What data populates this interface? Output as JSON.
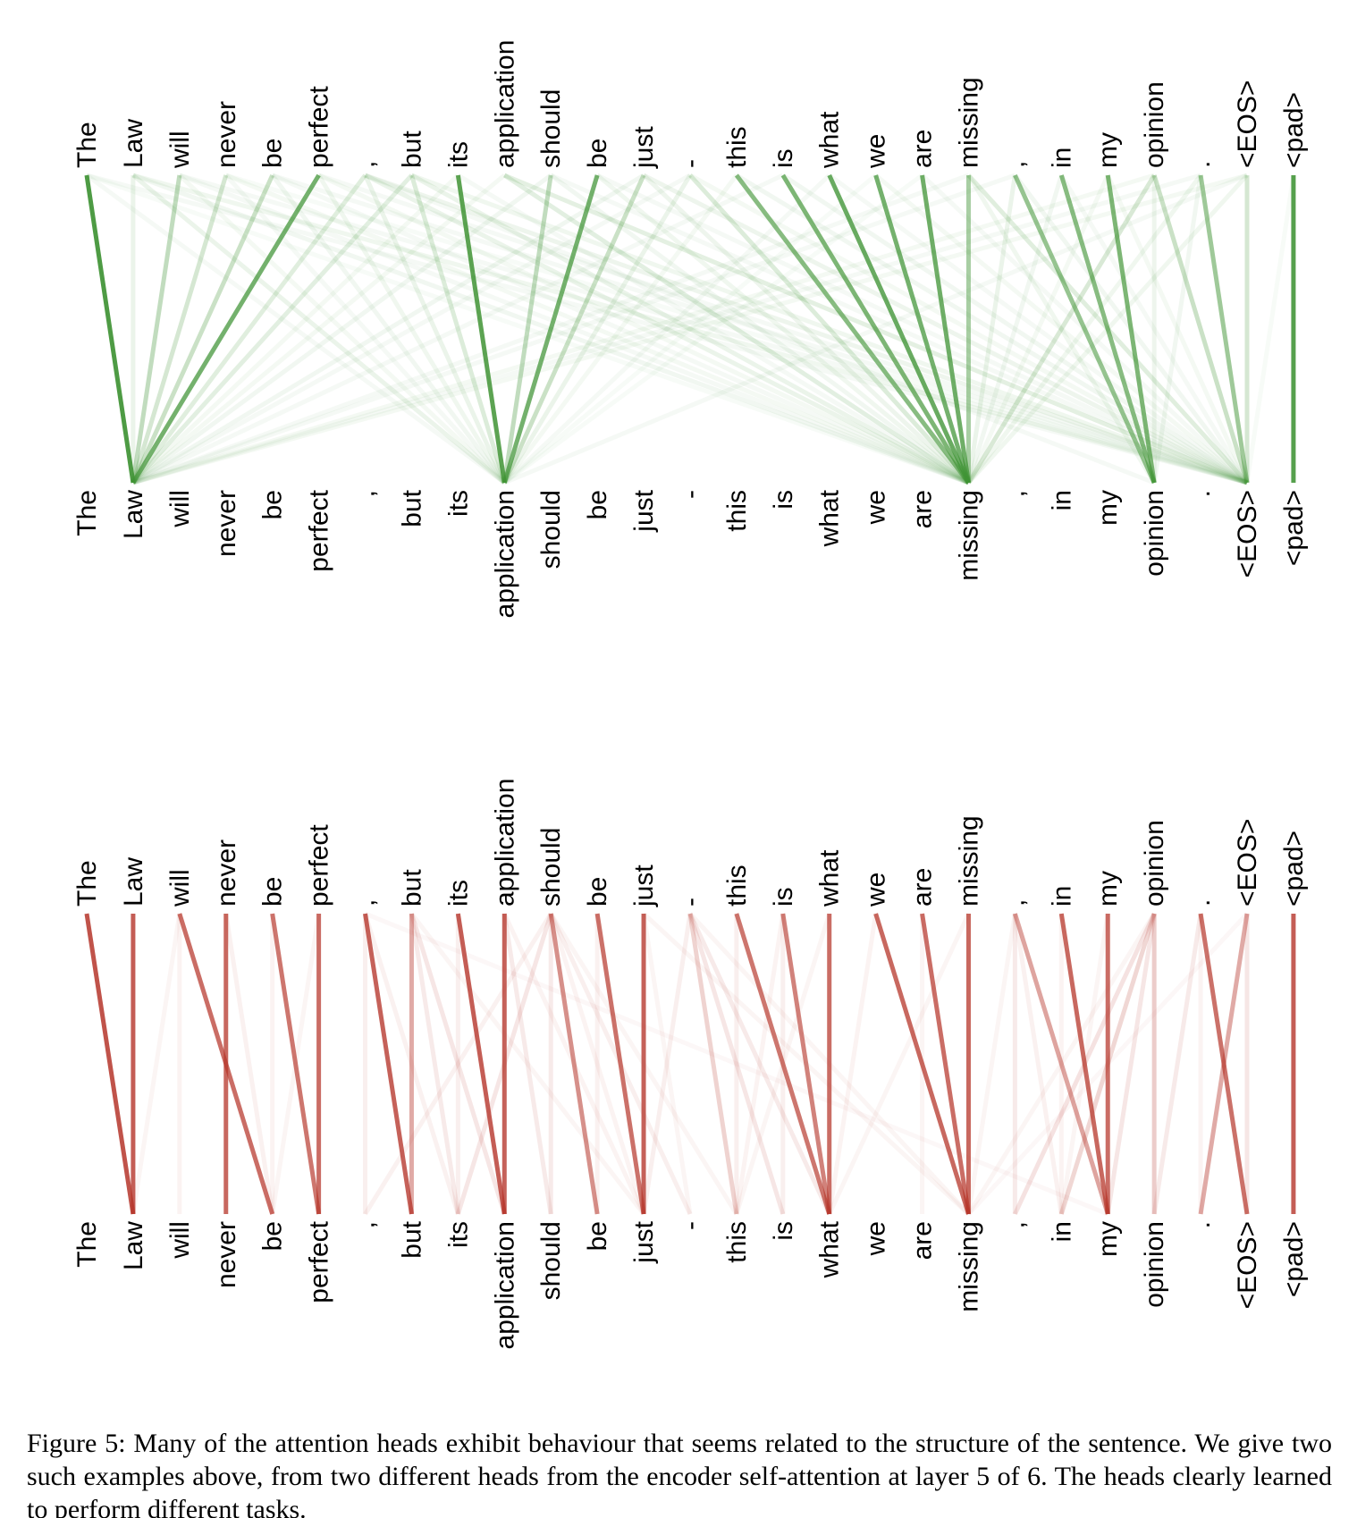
{
  "figure": {
    "tokens": [
      "The",
      "Law",
      "will",
      "never",
      "be",
      "perfect",
      ",",
      "but",
      "its",
      "application",
      "should",
      "be",
      "just",
      "-",
      "this",
      "is",
      "what",
      "we",
      "are",
      "missing",
      ",",
      "in",
      "my",
      "opinion",
      ".",
      "<EOS>",
      "<pad>"
    ],
    "heads": [
      {
        "id": "encoder-self-attention-head-green",
        "color": "#3F9334",
        "edges": [
          [
            0,
            1,
            0.92
          ],
          [
            5,
            1,
            0.72
          ],
          [
            8,
            9,
            0.85
          ],
          [
            11,
            9,
            0.72
          ],
          [
            14,
            19,
            0.62
          ],
          [
            15,
            19,
            0.68
          ],
          [
            16,
            19,
            0.78
          ],
          [
            17,
            19,
            0.72
          ],
          [
            18,
            19,
            0.75
          ],
          [
            19,
            19,
            0.45
          ],
          [
            20,
            23,
            0.55
          ],
          [
            21,
            23,
            0.62
          ],
          [
            22,
            23,
            0.68
          ],
          [
            24,
            25,
            0.5
          ],
          [
            26,
            26,
            0.88
          ],
          [
            2,
            1,
            0.32
          ],
          [
            3,
            1,
            0.22
          ],
          [
            4,
            1,
            0.28
          ],
          [
            10,
            9,
            0.32
          ],
          [
            12,
            9,
            0.28
          ],
          [
            7,
            9,
            0.18
          ],
          [
            13,
            19,
            0.18
          ],
          [
            23,
            25,
            0.28
          ],
          [
            23,
            19,
            0.2
          ],
          [
            25,
            25,
            0.22
          ],
          [
            9,
            19,
            0.15
          ],
          [
            9,
            25,
            0.14
          ],
          [
            6,
            1,
            0.16
          ],
          [
            19,
            25,
            0.16
          ],
          [
            1,
            9,
            0.1
          ],
          [
            7,
            1,
            0.15
          ],
          [
            0,
            9,
            0.05
          ],
          [
            0,
            19,
            0.04
          ],
          [
            0,
            25,
            0.05
          ],
          [
            1,
            1,
            0.1
          ],
          [
            1,
            19,
            0.07
          ],
          [
            1,
            25,
            0.08
          ],
          [
            2,
            9,
            0.06
          ],
          [
            2,
            19,
            0.05
          ],
          [
            2,
            25,
            0.05
          ],
          [
            3,
            9,
            0.05
          ],
          [
            3,
            19,
            0.06
          ],
          [
            3,
            25,
            0.04
          ],
          [
            4,
            9,
            0.07
          ],
          [
            4,
            19,
            0.05
          ],
          [
            4,
            25,
            0.05
          ],
          [
            5,
            9,
            0.08
          ],
          [
            5,
            19,
            0.06
          ],
          [
            5,
            25,
            0.05
          ],
          [
            6,
            9,
            0.1
          ],
          [
            6,
            19,
            0.1
          ],
          [
            6,
            25,
            0.09
          ],
          [
            6,
            23,
            0.05
          ],
          [
            7,
            19,
            0.1
          ],
          [
            7,
            25,
            0.08
          ],
          [
            8,
            1,
            0.06
          ],
          [
            8,
            19,
            0.05
          ],
          [
            9,
            1,
            0.06
          ],
          [
            10,
            1,
            0.07
          ],
          [
            10,
            19,
            0.07
          ],
          [
            10,
            25,
            0.05
          ],
          [
            11,
            19,
            0.08
          ],
          [
            11,
            25,
            0.05
          ],
          [
            12,
            1,
            0.07
          ],
          [
            12,
            19,
            0.09
          ],
          [
            12,
            25,
            0.09
          ],
          [
            13,
            9,
            0.1
          ],
          [
            13,
            25,
            0.06
          ],
          [
            13,
            1,
            0.05
          ],
          [
            14,
            9,
            0.06
          ],
          [
            14,
            25,
            0.07
          ],
          [
            15,
            1,
            0.05
          ],
          [
            15,
            25,
            0.07
          ],
          [
            16,
            9,
            0.05
          ],
          [
            16,
            25,
            0.05
          ],
          [
            17,
            25,
            0.06
          ],
          [
            17,
            9,
            0.04
          ],
          [
            18,
            25,
            0.05
          ],
          [
            18,
            9,
            0.04
          ],
          [
            19,
            23,
            0.08
          ],
          [
            19,
            1,
            0.05
          ],
          [
            20,
            19,
            0.1
          ],
          [
            20,
            25,
            0.07
          ],
          [
            20,
            1,
            0.05
          ],
          [
            21,
            19,
            0.07
          ],
          [
            21,
            25,
            0.05
          ],
          [
            22,
            19,
            0.06
          ],
          [
            22,
            25,
            0.06
          ],
          [
            23,
            23,
            0.09
          ],
          [
            23,
            1,
            0.06
          ],
          [
            24,
            19,
            0.08
          ],
          [
            24,
            23,
            0.07
          ],
          [
            24,
            1,
            0.05
          ],
          [
            25,
            19,
            0.08
          ],
          [
            25,
            1,
            0.06
          ],
          [
            25,
            9,
            0.05
          ],
          [
            26,
            25,
            0.04
          ]
        ]
      },
      {
        "id": "encoder-self-attention-head-red",
        "color": "#B5352A",
        "edges": [
          [
            0,
            1,
            0.85
          ],
          [
            1,
            1,
            0.8
          ],
          [
            2,
            4,
            0.72
          ],
          [
            3,
            3,
            0.75
          ],
          [
            4,
            5,
            0.68
          ],
          [
            5,
            5,
            0.72
          ],
          [
            6,
            7,
            0.78
          ],
          [
            8,
            9,
            0.8
          ],
          [
            9,
            9,
            0.78
          ],
          [
            10,
            11,
            0.55
          ],
          [
            11,
            12,
            0.7
          ],
          [
            12,
            12,
            0.78
          ],
          [
            14,
            16,
            0.68
          ],
          [
            15,
            16,
            0.62
          ],
          [
            16,
            16,
            0.72
          ],
          [
            17,
            19,
            0.75
          ],
          [
            18,
            19,
            0.72
          ],
          [
            19,
            19,
            0.75
          ],
          [
            21,
            22,
            0.75
          ],
          [
            22,
            22,
            0.72
          ],
          [
            24,
            25,
            0.7
          ],
          [
            26,
            26,
            0.8
          ],
          [
            7,
            7,
            0.42
          ],
          [
            20,
            22,
            0.45
          ],
          [
            25,
            24,
            0.42
          ],
          [
            23,
            23,
            0.25
          ],
          [
            23,
            21,
            0.2
          ],
          [
            23,
            20,
            0.14
          ],
          [
            13,
            14,
            0.22
          ],
          [
            2,
            2,
            0.06
          ],
          [
            3,
            4,
            0.07
          ],
          [
            2,
            1,
            0.05
          ],
          [
            4,
            4,
            0.06
          ],
          [
            5,
            4,
            0.05
          ],
          [
            6,
            6,
            0.08
          ],
          [
            6,
            8,
            0.07
          ],
          [
            7,
            8,
            0.1
          ],
          [
            7,
            9,
            0.12
          ],
          [
            7,
            12,
            0.05
          ],
          [
            8,
            8,
            0.08
          ],
          [
            9,
            10,
            0.1
          ],
          [
            9,
            12,
            0.06
          ],
          [
            10,
            8,
            0.12
          ],
          [
            10,
            6,
            0.07
          ],
          [
            10,
            10,
            0.1
          ],
          [
            10,
            13,
            0.08
          ],
          [
            10,
            12,
            0.06
          ],
          [
            10,
            14,
            0.05
          ],
          [
            11,
            11,
            0.07
          ],
          [
            12,
            13,
            0.05
          ],
          [
            13,
            15,
            0.12
          ],
          [
            13,
            16,
            0.1
          ],
          [
            13,
            12,
            0.08
          ],
          [
            13,
            19,
            0.05
          ],
          [
            14,
            14,
            0.08
          ],
          [
            15,
            15,
            0.08
          ],
          [
            15,
            14,
            0.06
          ],
          [
            16,
            14,
            0.05
          ],
          [
            12,
            19,
            0.05
          ],
          [
            17,
            16,
            0.06
          ],
          [
            18,
            18,
            0.05
          ],
          [
            19,
            16,
            0.05
          ],
          [
            20,
            20,
            0.1
          ],
          [
            20,
            21,
            0.07
          ],
          [
            20,
            19,
            0.05
          ],
          [
            21,
            21,
            0.06
          ],
          [
            22,
            21,
            0.05
          ],
          [
            23,
            22,
            0.12
          ],
          [
            23,
            19,
            0.05
          ],
          [
            24,
            23,
            0.1
          ],
          [
            24,
            24,
            0.06
          ],
          [
            25,
            25,
            0.12
          ],
          [
            25,
            19,
            0.04
          ],
          [
            6,
            22,
            0.04
          ]
        ]
      }
    ],
    "caption": "Figure 5: Many of the attention heads exhibit behaviour that seems related to the structure of the sentence. We give two such examples above, from two different heads from the encoder self-attention at layer 5 of 6. The heads clearly learned to perform different tasks."
  }
}
